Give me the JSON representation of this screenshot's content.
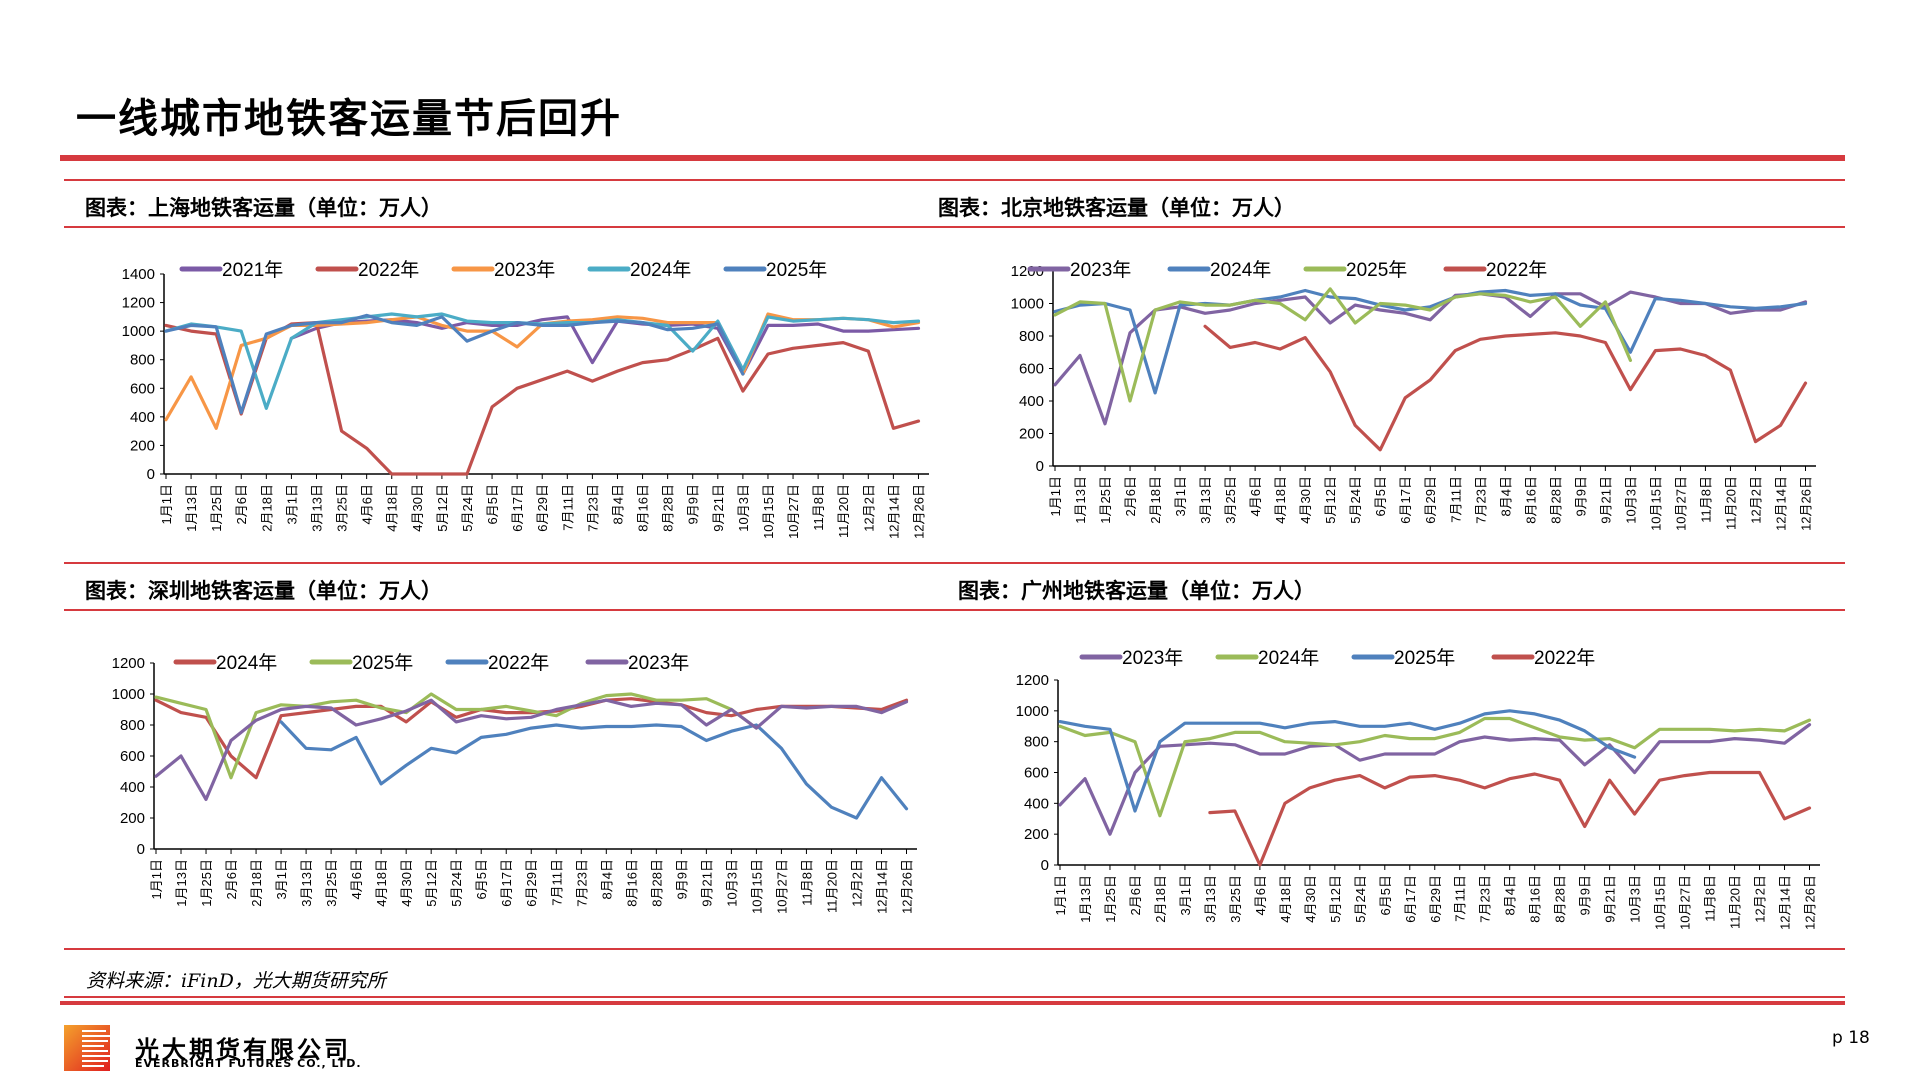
{
  "page": {
    "title": "一线城市地铁客运量节后回升",
    "source": "资料来源：iFinD，光大期货研究所",
    "company_cn": "光大期货有限公司",
    "company_en": "EVERBRIGHT FUTURES CO., LTD.",
    "page_number": "p 18",
    "accent_color": "#d63a3f"
  },
  "x_ticks": [
    "1月1日",
    "1月13日",
    "1月25日",
    "2月6日",
    "2月18日",
    "3月1日",
    "3月13日",
    "3月25日",
    "4月6日",
    "4月18日",
    "4月30日",
    "5月12日",
    "5月24日",
    "6月5日",
    "6月17日",
    "6月29日",
    "7月11日",
    "7月23日",
    "8月4日",
    "8月16日",
    "8月28日",
    "9月9日",
    "9月21日",
    "10月3日",
    "10月15日",
    "10月27日",
    "11月8日",
    "11月20日",
    "12月2日",
    "12月14日",
    "12月26日"
  ],
  "chart_data": [
    {
      "type": "line",
      "title": "图表：上海地铁客运量（单位：万人）",
      "xlabel": "",
      "ylabel": "万人",
      "ylim": [
        0,
        1400
      ],
      "yticks": [
        0,
        200,
        400,
        600,
        800,
        1000,
        1200,
        1400
      ],
      "legend_position": "top",
      "categories": [
        "1月1日",
        "1月13日",
        "1月25日",
        "2月6日",
        "2月18日",
        "3月1日",
        "3月13日",
        "3月25日",
        "4月6日",
        "4月18日",
        "4月30日",
        "5月12日",
        "5月24日",
        "6月5日",
        "6月17日",
        "6月29日",
        "7月11日",
        "7月23日",
        "8月4日",
        "8月16日",
        "8月28日",
        "9月9日",
        "9月21日",
        "10月3日",
        "10月15日",
        "10月27日",
        "11月8日",
        "11月20日",
        "12月2日",
        "12月14日",
        "12月26日"
      ],
      "series": [
        {
          "name": "2021年",
          "color": "#7b5aa6",
          "values": [
            null,
            null,
            null,
            null,
            null,
            950,
            1020,
            1060,
            1070,
            1080,
            1060,
            1020,
            1060,
            1040,
            1040,
            1080,
            1100,
            780,
            1070,
            1050,
            1040,
            1050,
            1020,
            700,
            1040,
            1040,
            1050,
            1000,
            1000,
            1010,
            1020
          ]
        },
        {
          "name": "2022年",
          "color": "#c0504d",
          "values": [
            1040,
            1000,
            980,
            420,
            950,
            1050,
            1060,
            300,
            180,
            0,
            0,
            0,
            0,
            470,
            600,
            660,
            720,
            650,
            720,
            780,
            800,
            870,
            950,
            580,
            840,
            880,
            900,
            920,
            860,
            320,
            370
          ]
        },
        {
          "name": "2023年",
          "color": "#f79646",
          "values": [
            380,
            680,
            320,
            900,
            950,
            1040,
            1040,
            1050,
            1060,
            1080,
            1100,
            1040,
            1000,
            1000,
            890,
            1050,
            1070,
            1080,
            1100,
            1090,
            1060,
            1060,
            1060,
            700,
            1120,
            1080,
            1080,
            1090,
            1080,
            1030,
            1060
          ]
        },
        {
          "name": "2024年",
          "color": "#4bacc6",
          "values": [
            1000,
            1050,
            1030,
            1000,
            460,
            950,
            1060,
            1080,
            1100,
            1120,
            1100,
            1120,
            1070,
            1060,
            1060,
            1050,
            1060,
            1060,
            1080,
            1060,
            1040,
            860,
            1070,
            730,
            1100,
            1070,
            1080,
            1090,
            1080,
            1060,
            1070
          ]
        },
        {
          "name": "2025年",
          "color": "#4f81bd",
          "values": [
            1000,
            1040,
            1030,
            430,
            980,
            1040,
            1060,
            1060,
            1110,
            1060,
            1040,
            1100,
            930,
            1000,
            1060,
            1040,
            1040,
            1060,
            1070,
            1060,
            1010,
            1020,
            1050,
            700,
            null,
            null,
            null,
            null,
            null,
            null,
            null
          ]
        }
      ]
    },
    {
      "type": "line",
      "title": "图表：北京地铁客运量（单位：万人）",
      "xlabel": "",
      "ylabel": "万人",
      "ylim": [
        0,
        1200
      ],
      "yticks": [
        0,
        200,
        400,
        600,
        800,
        1000,
        1200
      ],
      "legend_position": "top",
      "categories": [
        "1月1日",
        "1月13日",
        "1月25日",
        "2月6日",
        "2月18日",
        "3月1日",
        "3月13日",
        "3月25日",
        "4月6日",
        "4月18日",
        "4月30日",
        "5月12日",
        "5月24日",
        "6月5日",
        "6月17日",
        "6月29日",
        "7月11日",
        "7月23日",
        "8月4日",
        "8月16日",
        "8月28日",
        "9月9日",
        "9月21日",
        "10月3日",
        "10月15日",
        "10月27日",
        "11月8日",
        "11月20日",
        "12月2日",
        "12月14日",
        "12月26日"
      ],
      "series": [
        {
          "name": "2023年",
          "color": "#8064a2",
          "values": [
            500,
            680,
            260,
            820,
            960,
            980,
            940,
            960,
            1000,
            1020,
            1040,
            880,
            990,
            960,
            940,
            900,
            1050,
            1060,
            1040,
            920,
            1060,
            1060,
            980,
            1070,
            1040,
            1000,
            1000,
            940,
            960,
            960,
            1010
          ]
        },
        {
          "name": "2024年",
          "color": "#4f81bd",
          "values": [
            950,
            990,
            1000,
            960,
            450,
            990,
            1000,
            990,
            1020,
            1040,
            1080,
            1040,
            1030,
            990,
            960,
            980,
            1040,
            1070,
            1080,
            1050,
            1060,
            990,
            970,
            700,
            1030,
            1020,
            1000,
            980,
            970,
            980,
            1000
          ]
        },
        {
          "name": "2025年",
          "color": "#9bbb59",
          "values": [
            930,
            1010,
            1000,
            400,
            960,
            1010,
            990,
            990,
            1020,
            1000,
            900,
            1090,
            880,
            1000,
            990,
            960,
            1040,
            1060,
            1050,
            1010,
            1040,
            860,
            1010,
            650,
            null,
            null,
            null,
            null,
            null,
            null,
            null
          ]
        },
        {
          "name": "2022年",
          "color": "#c0504d",
          "values": [
            null,
            null,
            null,
            null,
            null,
            null,
            860,
            730,
            760,
            720,
            790,
            580,
            250,
            100,
            420,
            530,
            710,
            780,
            800,
            810,
            820,
            800,
            760,
            470,
            710,
            720,
            680,
            590,
            150,
            250,
            510
          ]
        }
      ]
    },
    {
      "type": "line",
      "title": "图表：深圳地铁客运量（单位：万人）",
      "xlabel": "",
      "ylabel": "万人",
      "ylim": [
        0,
        1200
      ],
      "yticks": [
        0,
        200,
        400,
        600,
        800,
        1000,
        1200
      ],
      "legend_position": "top",
      "categories": [
        "1月1日",
        "1月13日",
        "1月25日",
        "2月6日",
        "2月18日",
        "3月1日",
        "3月13日",
        "3月25日",
        "4月6日",
        "4月18日",
        "4月30日",
        "5月12日",
        "5月24日",
        "6月5日",
        "6月17日",
        "6月29日",
        "7月11日",
        "7月23日",
        "8月4日",
        "8月16日",
        "8月28日",
        "9月9日",
        "9月21日",
        "10月3日",
        "10月15日",
        "10月27日",
        "11月8日",
        "11月20日",
        "12月2日",
        "12月14日",
        "12月26日"
      ],
      "series": [
        {
          "name": "2024年",
          "color": "#c0504d",
          "values": [
            960,
            880,
            850,
            600,
            460,
            860,
            880,
            900,
            920,
            920,
            820,
            950,
            850,
            900,
            880,
            880,
            890,
            920,
            960,
            970,
            950,
            930,
            880,
            860,
            900,
            920,
            920,
            920,
            910,
            900,
            960
          ]
        },
        {
          "name": "2025年",
          "color": "#9bbb59",
          "values": [
            980,
            940,
            900,
            460,
            880,
            930,
            920,
            950,
            960,
            910,
            880,
            1000,
            900,
            900,
            920,
            890,
            860,
            940,
            990,
            1000,
            960,
            960,
            970,
            900,
            780,
            null,
            null,
            null,
            null,
            null,
            null
          ]
        },
        {
          "name": "2022年",
          "color": "#4f81bd",
          "values": [
            null,
            null,
            null,
            null,
            null,
            820,
            650,
            640,
            720,
            420,
            540,
            650,
            620,
            720,
            740,
            780,
            800,
            780,
            790,
            790,
            800,
            790,
            700,
            760,
            800,
            650,
            420,
            270,
            200,
            460,
            260
          ]
        },
        {
          "name": "2023年",
          "color": "#8064a2",
          "values": [
            470,
            600,
            320,
            700,
            830,
            900,
            920,
            910,
            800,
            840,
            890,
            960,
            820,
            860,
            840,
            850,
            900,
            930,
            960,
            920,
            940,
            930,
            800,
            900,
            780,
            920,
            910,
            920,
            920,
            880,
            950
          ]
        }
      ]
    },
    {
      "type": "line",
      "title": "图表：广州地铁客运量（单位：万人）",
      "xlabel": "",
      "ylabel": "万人",
      "ylim": [
        0,
        1200
      ],
      "yticks": [
        0,
        200,
        400,
        600,
        800,
        1000,
        1200
      ],
      "legend_position": "top",
      "categories": [
        "1月1日",
        "1月13日",
        "1月25日",
        "2月6日",
        "2月18日",
        "3月1日",
        "3月13日",
        "3月25日",
        "4月6日",
        "4月18日",
        "4月30日",
        "5月12日",
        "5月24日",
        "6月5日",
        "6月17日",
        "6月29日",
        "7月11日",
        "7月23日",
        "8月4日",
        "8月16日",
        "8月28日",
        "9月9日",
        "9月21日",
        "10月3日",
        "10月15日",
        "10月27日",
        "11月8日",
        "11月20日",
        "12月2日",
        "12月14日",
        "12月26日"
      ],
      "series": [
        {
          "name": "2023年",
          "color": "#8064a2",
          "values": [
            390,
            560,
            200,
            600,
            770,
            780,
            790,
            780,
            720,
            720,
            770,
            780,
            680,
            720,
            720,
            720,
            800,
            830,
            810,
            820,
            810,
            650,
            780,
            600,
            800,
            800,
            800,
            820,
            810,
            790,
            910
          ]
        },
        {
          "name": "2024年",
          "color": "#9bbb59",
          "values": [
            900,
            840,
            860,
            800,
            320,
            800,
            820,
            860,
            860,
            800,
            790,
            780,
            800,
            840,
            820,
            820,
            860,
            950,
            950,
            890,
            830,
            810,
            820,
            760,
            880,
            880,
            880,
            870,
            880,
            870,
            940
          ]
        },
        {
          "name": "2025年",
          "color": "#4f81bd",
          "values": [
            930,
            900,
            880,
            350,
            800,
            920,
            920,
            920,
            920,
            890,
            920,
            930,
            900,
            900,
            920,
            880,
            920,
            980,
            1000,
            980,
            940,
            870,
            760,
            700,
            null,
            null,
            null,
            null,
            null,
            null,
            null
          ]
        },
        {
          "name": "2022年",
          "color": "#c0504d",
          "values": [
            null,
            null,
            null,
            null,
            null,
            null,
            340,
            350,
            0,
            400,
            500,
            550,
            580,
            500,
            570,
            580,
            550,
            500,
            560,
            590,
            550,
            250,
            550,
            330,
            550,
            580,
            600,
            600,
            600,
            300,
            370
          ]
        }
      ]
    }
  ]
}
